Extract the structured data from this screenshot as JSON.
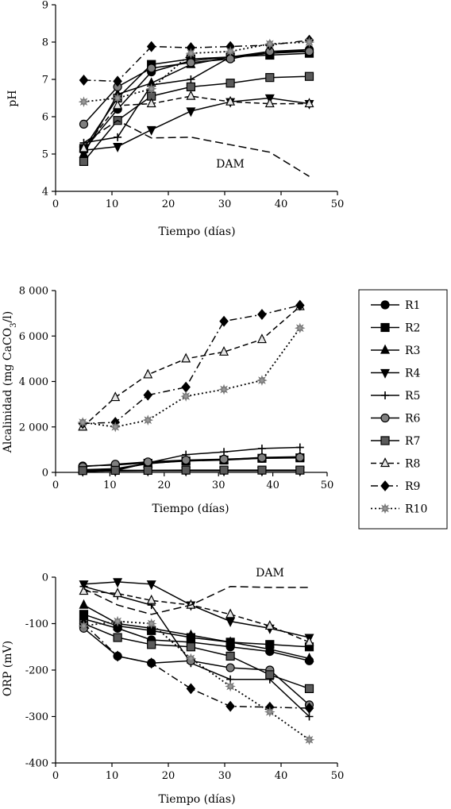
{
  "chart_data": [
    {
      "id": "ph",
      "type": "line",
      "xlabel": "Tiempo (días)",
      "ylabel": "pH",
      "xlim": [
        0,
        50
      ],
      "ylim": [
        4,
        9
      ],
      "xticks": [
        "0",
        "10",
        "20",
        "30",
        "40",
        "50"
      ],
      "yticks": [
        "4",
        "5",
        "6",
        "7",
        "8",
        "9"
      ],
      "annotation": "DAM",
      "series": [
        {
          "name": "R1",
          "x": [
            5,
            11,
            17,
            24,
            31,
            38,
            45
          ],
          "y": [
            5.1,
            6.2,
            7.2,
            7.5,
            7.6,
            7.7,
            7.8
          ]
        },
        {
          "name": "R2",
          "x": [
            5,
            11,
            17,
            24,
            31,
            38,
            45
          ],
          "y": [
            5.15,
            6.5,
            7.4,
            7.55,
            7.6,
            7.65,
            7.7
          ]
        },
        {
          "name": "R3",
          "x": [
            5,
            11,
            17,
            24,
            31,
            38,
            45
          ],
          "y": [
            5.0,
            6.6,
            6.9,
            7.4,
            7.6,
            7.75,
            7.8
          ]
        },
        {
          "name": "R4",
          "x": [
            5,
            11,
            17,
            24,
            31,
            38,
            45
          ],
          "y": [
            5.1,
            5.2,
            5.65,
            6.15,
            6.4,
            6.5,
            6.35
          ]
        },
        {
          "name": "R5",
          "x": [
            5,
            11,
            17,
            24,
            31,
            38,
            45
          ],
          "y": [
            5.3,
            5.45,
            6.85,
            7.0,
            7.6,
            7.7,
            7.75
          ]
        },
        {
          "name": "R6",
          "x": [
            5,
            11,
            17,
            24,
            31,
            38,
            45
          ],
          "y": [
            5.8,
            6.8,
            7.3,
            7.45,
            7.55,
            7.75,
            7.75
          ]
        },
        {
          "name": "R7",
          "x": [
            5,
            11,
            17,
            24,
            31,
            38,
            45
          ],
          "y": [
            4.8,
            5.9,
            6.55,
            6.8,
            6.9,
            7.05,
            7.08
          ]
        },
        {
          "name": "R8",
          "x": [
            5,
            11,
            17,
            24,
            31,
            38,
            45
          ],
          "y": [
            5.15,
            6.3,
            6.35,
            6.55,
            6.4,
            6.35,
            6.35
          ]
        },
        {
          "name": "R9",
          "x": [
            5,
            11,
            17,
            24,
            31,
            38,
            45
          ],
          "y": [
            6.98,
            6.95,
            7.88,
            7.85,
            7.88,
            7.92,
            8.05
          ]
        },
        {
          "name": "R10",
          "x": [
            5,
            11,
            17,
            24,
            31,
            38,
            45
          ],
          "y": [
            6.4,
            6.5,
            6.75,
            7.7,
            7.75,
            7.95,
            8.0
          ]
        },
        {
          "name": "DAM",
          "x": [
            5,
            11,
            17,
            24,
            31,
            38,
            45
          ],
          "y": [
            5.3,
            5.9,
            5.43,
            5.45,
            5.25,
            5.05,
            4.4
          ]
        }
      ]
    },
    {
      "id": "alc",
      "type": "line",
      "xlabel": "Tiempo (días)",
      "ylabel": "Alcalinidad (mg CaCO3/l)",
      "xlim": [
        0,
        50
      ],
      "ylim": [
        0,
        8000
      ],
      "xticks": [
        "0",
        "10",
        "20",
        "30",
        "40",
        "50"
      ],
      "yticks": [
        "0",
        "2 000",
        "4 000",
        "6 000",
        "8 000"
      ],
      "series": [
        {
          "name": "R1",
          "x": [
            5,
            11,
            17,
            24,
            31,
            38,
            45
          ],
          "y": [
            280,
            320,
            420,
            520,
            560,
            620,
            650
          ]
        },
        {
          "name": "R2",
          "x": [
            5,
            11,
            17,
            24,
            31,
            38,
            45
          ],
          "y": [
            120,
            160,
            400,
            500,
            540,
            620,
            640
          ]
        },
        {
          "name": "R3",
          "x": [
            5,
            11,
            17,
            24,
            31,
            38,
            45
          ],
          "y": [
            100,
            140,
            380,
            520,
            560,
            660,
            690
          ]
        },
        {
          "name": "R4",
          "x": [
            5,
            11,
            17,
            24,
            31,
            38,
            45
          ],
          "y": [
            60,
            60,
            70,
            70,
            70,
            70,
            70
          ]
        },
        {
          "name": "R5",
          "x": [
            5,
            11,
            17,
            24,
            31,
            38,
            45
          ],
          "y": [
            20,
            80,
            420,
            780,
            900,
            1050,
            1100
          ]
        },
        {
          "name": "R6",
          "x": [
            5,
            11,
            17,
            24,
            31,
            38,
            45
          ],
          "y": [
            250,
            360,
            460,
            540,
            580,
            640,
            660
          ]
        },
        {
          "name": "R7",
          "x": [
            5,
            11,
            17,
            24,
            31,
            38,
            45
          ],
          "y": [
            80,
            90,
            90,
            100,
            100,
            100,
            100
          ]
        },
        {
          "name": "R8",
          "x": [
            5,
            11,
            17,
            24,
            31,
            38,
            45
          ],
          "y": [
            2000,
            3300,
            4300,
            5000,
            5300,
            5850,
            7300
          ]
        },
        {
          "name": "R9",
          "x": [
            5,
            11,
            17,
            24,
            31,
            38,
            45
          ],
          "y": [
            2150,
            2200,
            3400,
            3750,
            6650,
            6950,
            7350
          ]
        },
        {
          "name": "R10",
          "x": [
            5,
            11,
            17,
            24,
            31,
            38,
            45
          ],
          "y": [
            2200,
            2000,
            2300,
            3350,
            3650,
            4050,
            6350
          ]
        }
      ]
    },
    {
      "id": "orp",
      "type": "line",
      "xlabel": "Tiempo (días)",
      "ylabel": "ORP (mV)",
      "xlim": [
        0,
        50
      ],
      "ylim": [
        -400,
        0
      ],
      "xticks": [
        "0",
        "10",
        "20",
        "30",
        "40",
        "50"
      ],
      "yticks": [
        "-400",
        "-300",
        "-200",
        "-100",
        "0"
      ],
      "annotation": "DAM",
      "series": [
        {
          "name": "R1",
          "x": [
            5,
            11,
            17,
            24,
            31,
            38,
            45
          ],
          "y": [
            -90,
            -110,
            -135,
            -140,
            -150,
            -160,
            -180
          ]
        },
        {
          "name": "R2",
          "x": [
            5,
            11,
            17,
            24,
            31,
            38,
            45
          ],
          "y": [
            -80,
            -105,
            -115,
            -130,
            -140,
            -145,
            -150
          ]
        },
        {
          "name": "R3",
          "x": [
            5,
            11,
            17,
            24,
            31,
            38,
            45
          ],
          "y": [
            -60,
            -100,
            -110,
            -125,
            -140,
            -155,
            -175
          ]
        },
        {
          "name": "R4",
          "x": [
            5,
            11,
            17,
            24,
            31,
            38,
            45
          ],
          "y": [
            -15,
            -10,
            -15,
            -60,
            -95,
            -110,
            -130
          ]
        },
        {
          "name": "R5",
          "x": [
            5,
            11,
            17,
            24,
            31,
            38,
            45
          ],
          "y": [
            -20,
            -40,
            -60,
            -185,
            -220,
            -220,
            -300
          ]
        },
        {
          "name": "R6",
          "x": [
            5,
            11,
            17,
            24,
            31,
            38,
            45
          ],
          "y": [
            -110,
            -170,
            -185,
            -180,
            -195,
            -200,
            -275
          ]
        },
        {
          "name": "R7",
          "x": [
            5,
            11,
            17,
            24,
            31,
            38,
            45
          ],
          "y": [
            -100,
            -130,
            -145,
            -150,
            -170,
            -210,
            -240
          ]
        },
        {
          "name": "R8",
          "x": [
            5,
            11,
            17,
            24,
            31,
            38,
            45
          ],
          "y": [
            -30,
            -35,
            -50,
            -60,
            -80,
            -105,
            -140
          ]
        },
        {
          "name": "R9",
          "x": [
            5,
            11,
            17,
            24,
            31,
            38,
            45
          ],
          "y": [
            -100,
            -170,
            -185,
            -240,
            -278,
            -280,
            -282
          ]
        },
        {
          "name": "R10",
          "x": [
            5,
            11,
            17,
            24,
            31,
            38,
            45
          ],
          "y": [
            -105,
            -95,
            -100,
            -175,
            -235,
            -290,
            -350
          ]
        },
        {
          "name": "DAM",
          "x": [
            5,
            11,
            17,
            24,
            31,
            38,
            45
          ],
          "y": [
            -25,
            -60,
            -80,
            -60,
            -20,
            -22,
            -22
          ]
        }
      ]
    }
  ],
  "legend": {
    "items": [
      "R1",
      "R2",
      "R3",
      "R4",
      "R5",
      "R6",
      "R7",
      "R8",
      "R9",
      "R10"
    ]
  },
  "styles": {
    "R1": {
      "marker": "circle",
      "dash": "solid",
      "color": "#000000",
      "fill": "#000000"
    },
    "R2": {
      "marker": "square",
      "dash": "solid",
      "color": "#000000",
      "fill": "#000000"
    },
    "R3": {
      "marker": "triangle-up",
      "dash": "solid",
      "color": "#000000",
      "fill": "#000000"
    },
    "R4": {
      "marker": "triangle-down",
      "dash": "solid",
      "color": "#000000",
      "fill": "#000000"
    },
    "R5": {
      "marker": "plus",
      "dash": "solid",
      "color": "#000000",
      "fill": "#000000"
    },
    "R6": {
      "marker": "circle",
      "dash": "solid",
      "color": "#000000",
      "fill": "#808080"
    },
    "R7": {
      "marker": "square",
      "dash": "solid",
      "color": "#000000",
      "fill": "#5a5a5a"
    },
    "R8": {
      "marker": "triangle-up",
      "dash": "dashed",
      "color": "#000000",
      "fill": "#e6e6e6"
    },
    "R9": {
      "marker": "diamond",
      "dash": "dashdot",
      "color": "#000000",
      "fill": "#000000"
    },
    "R10": {
      "marker": "star",
      "dash": "dotted",
      "color": "#000000",
      "fill": "#999999"
    },
    "DAM": {
      "marker": "none",
      "dash": "longdash",
      "color": "#000000",
      "fill": "none"
    }
  }
}
